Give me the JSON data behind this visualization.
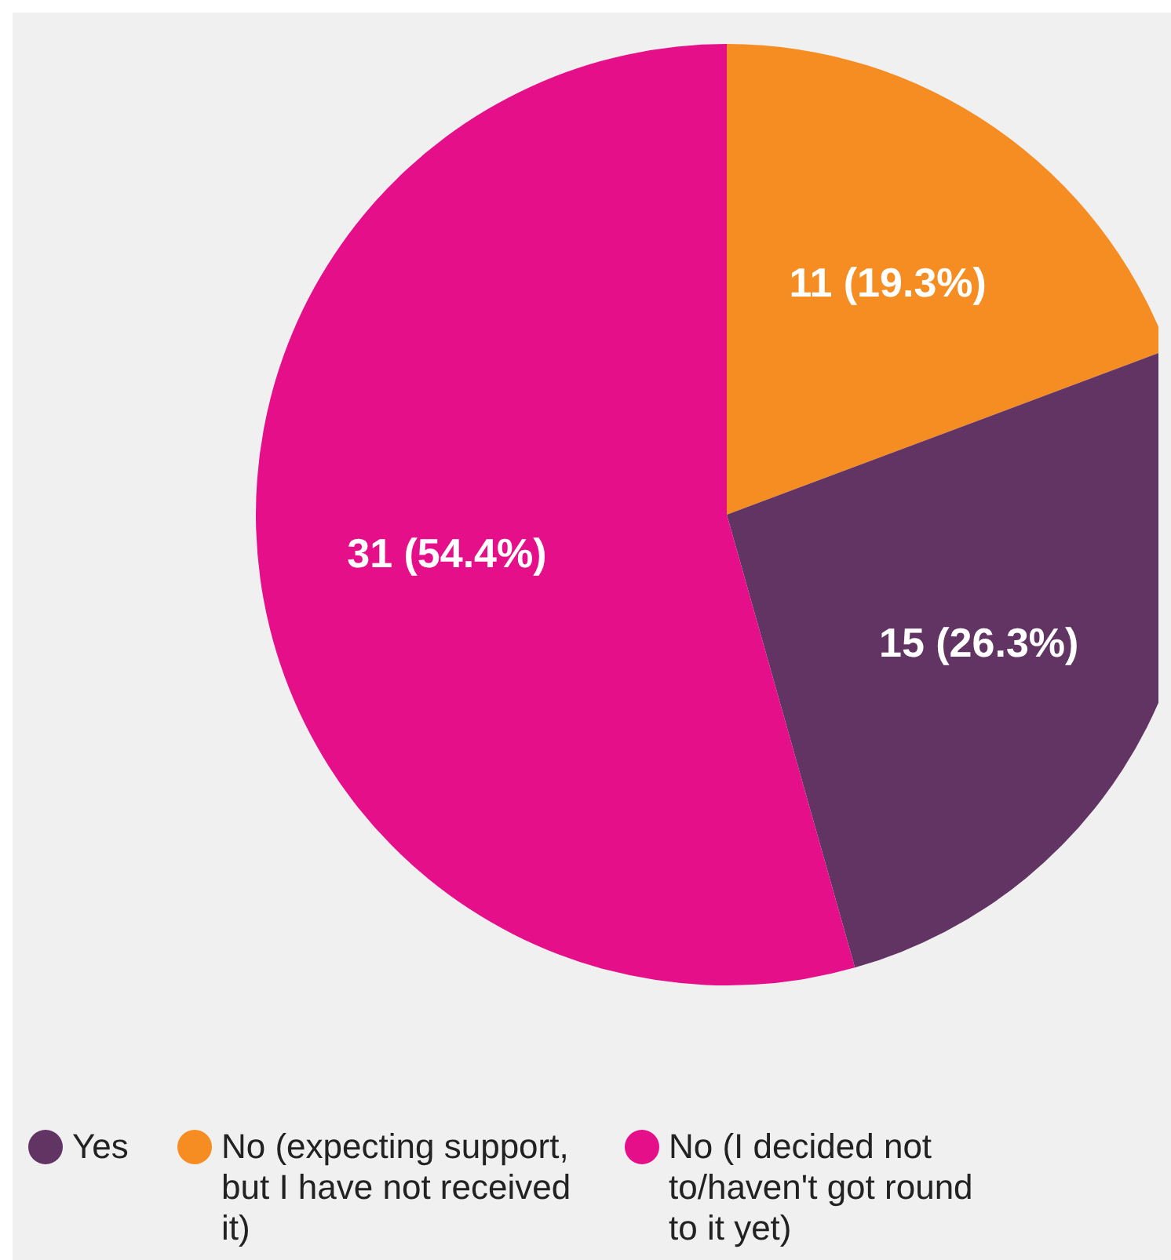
{
  "chart_data": {
    "type": "pie",
    "categories": [
      "Yes",
      "No (expecting support, but I have not received it)",
      "No (I decided not to/haven't got round to it yet)"
    ],
    "values": [
      15,
      11,
      31
    ],
    "colors": [
      "#623463",
      "#f68d22",
      "#e50f8a"
    ],
    "value_labels": [
      "15 (26.3%)",
      "11 (19.3%)",
      "31 (54.4%)"
    ],
    "legend": "bottom"
  }
}
